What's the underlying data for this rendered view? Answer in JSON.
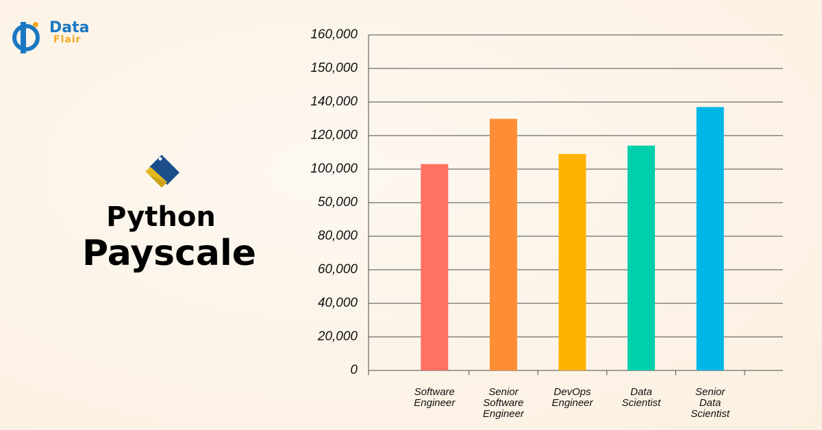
{
  "logo": {
    "word1": "Data",
    "word2": "Flair"
  },
  "heading": {
    "line1": "Python",
    "line2": "Payscale"
  },
  "chart_data": {
    "type": "bar",
    "categories": [
      "Software Engineer",
      "Senior Software Engineer",
      "DevOps Engineer",
      "Data Scientist",
      "Senior Data Scientist"
    ],
    "values": [
      103000,
      130000,
      109000,
      114000,
      137000
    ],
    "colors": [
      "#ff7162",
      "#fd8e36",
      "#fdb200",
      "#00cfab",
      "#00b6e7"
    ],
    "ylim": [
      0,
      160000
    ],
    "yticks": [
      0,
      {
        "value": 20000,
        "label": "20,000"
      },
      {
        "value": 40000,
        "label": "40,000"
      },
      {
        "value": 60000,
        "label": "60,000"
      },
      {
        "value": 80000,
        "label": "80,000"
      },
      {
        "value": 50000,
        "label": "50,000"
      },
      {
        "value": 100000,
        "label": "100,000"
      },
      {
        "value": 120000,
        "label": "120,000"
      },
      {
        "value": 140000,
        "label": "140,000"
      },
      {
        "value": 150000,
        "label": "150,000"
      },
      {
        "value": 160000,
        "label": "160,000"
      }
    ],
    "grid": true
  }
}
